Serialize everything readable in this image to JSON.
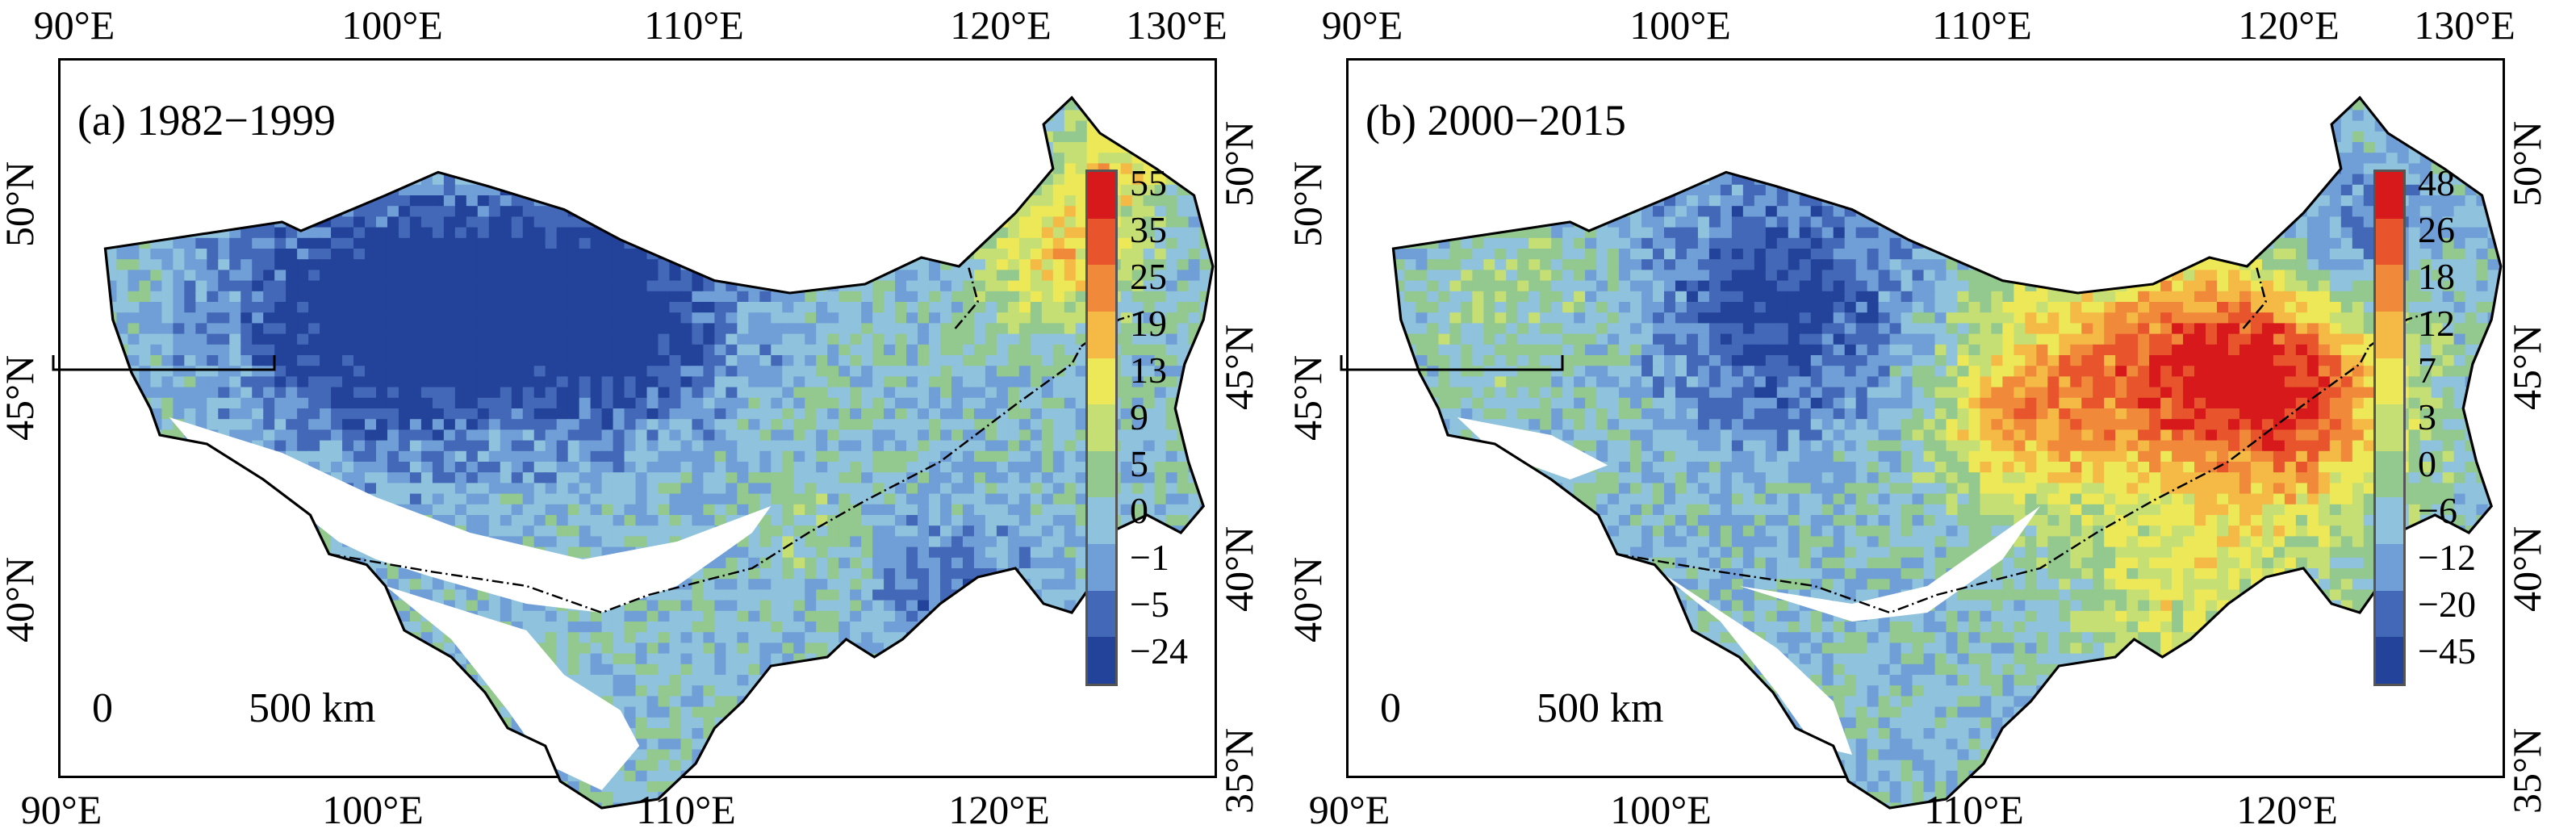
{
  "panels": [
    {
      "id": "a",
      "title": "(a) 1982−1999",
      "top_lon_labels": [
        "90°E",
        "100°E",
        "110°E",
        "120°E",
        "130°E"
      ],
      "bottom_lon_labels": [
        "90°E",
        "100°E",
        "110°E",
        "120°E"
      ],
      "left_lat_labels": [
        "50°N",
        "45°N",
        "40°N"
      ],
      "right_lat_labels": [
        "50°N",
        "45°N",
        "40°N",
        "35°N"
      ],
      "legend": {
        "labels": [
          "55",
          "35",
          "25",
          "19",
          "13",
          "9",
          "5",
          "0",
          "−1",
          "−5",
          "−24"
        ],
        "colors": [
          "#d7191c",
          "#e8542b",
          "#f08a3a",
          "#f4ba45",
          "#ede857",
          "#c5df74",
          "#93c88e",
          "#8fc2dc",
          "#6f9fd6",
          "#4468b8",
          "#23439a"
        ]
      },
      "scale_bar": {
        "start_label": "0",
        "end_label": "500 km"
      },
      "palette": {
        "dominant": [
          "#8fc2dc",
          "#6f9fd6",
          "#4468b8",
          "#93c88e"
        ],
        "hot": [
          "#f08a3a",
          "#d7191c"
        ]
      }
    },
    {
      "id": "b",
      "title": "(b) 2000−2015",
      "top_lon_labels": [
        "90°E",
        "100°E",
        "110°E",
        "120°E",
        "130°E"
      ],
      "bottom_lon_labels": [
        "90°E",
        "100°E",
        "110°E",
        "120°E"
      ],
      "left_lat_labels": [
        "50°N",
        "45°N",
        "40°N"
      ],
      "right_lat_labels": [
        "50°N",
        "45°N",
        "40°N",
        "35°N"
      ],
      "legend": {
        "labels": [
          "48",
          "26",
          "18",
          "12",
          "7",
          "3",
          "0",
          "−6",
          "−12",
          "−20",
          "−45"
        ],
        "colors": [
          "#d7191c",
          "#e8542b",
          "#f08a3a",
          "#f4ba45",
          "#ede857",
          "#c5df74",
          "#93c88e",
          "#8fc2dc",
          "#6f9fd6",
          "#4468b8",
          "#23439a"
        ]
      },
      "scale_bar": {
        "start_label": "0",
        "end_label": "500 km"
      },
      "palette": {
        "dominant": [
          "#93c88e",
          "#c5df74",
          "#f4ba45",
          "#f08a3a"
        ],
        "cool": [
          "#8fc2dc",
          "#4468b8"
        ]
      }
    }
  ]
}
